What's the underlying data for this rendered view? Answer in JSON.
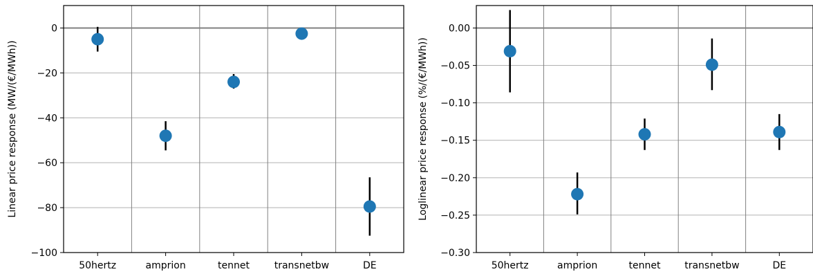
{
  "chart_data": [
    {
      "type": "scatter",
      "categories": [
        "50hertz",
        "amprion",
        "tennet",
        "transnetbw",
        "DE"
      ],
      "values": [
        -5,
        -48,
        -24,
        -2.5,
        -79.5
      ],
      "error_low": [
        -10.5,
        -54.5,
        -27,
        -3,
        -92.5
      ],
      "error_high": [
        0.5,
        -41.5,
        -20.5,
        -2,
        -66.5
      ],
      "ylabel": "Linear price response (MW/(€/MWh))",
      "ylim": [
        -100,
        10
      ],
      "yticks": [
        0,
        -20,
        -40,
        -60,
        -80,
        -100
      ],
      "ytick_labels": [
        "0",
        "−20",
        "−40",
        "−60",
        "−80",
        "−100"
      ],
      "zero_line": 0,
      "grid": true,
      "marker_color": "#1f77b4",
      "errorbar_color": "#000000"
    },
    {
      "type": "scatter",
      "categories": [
        "50hertz",
        "amprion",
        "tennet",
        "transnetbw",
        "DE"
      ],
      "values": [
        -0.031,
        -0.222,
        -0.142,
        -0.049,
        -0.139
      ],
      "error_low": [
        -0.086,
        -0.249,
        -0.163,
        -0.083,
        -0.163
      ],
      "error_high": [
        0.024,
        -0.193,
        -0.121,
        -0.014,
        -0.115
      ],
      "ylabel": "Loglinear price response (%/(€/MWh))",
      "ylim": [
        -0.3,
        0.03
      ],
      "yticks": [
        0.0,
        -0.05,
        -0.1,
        -0.15,
        -0.2,
        -0.25,
        -0.3
      ],
      "ytick_labels": [
        "0.00",
        "−0.05",
        "−0.10",
        "−0.15",
        "−0.20",
        "−0.25",
        "−0.30"
      ],
      "zero_line": 0,
      "grid": true,
      "marker_color": "#1f77b4",
      "errorbar_color": "#000000"
    }
  ]
}
